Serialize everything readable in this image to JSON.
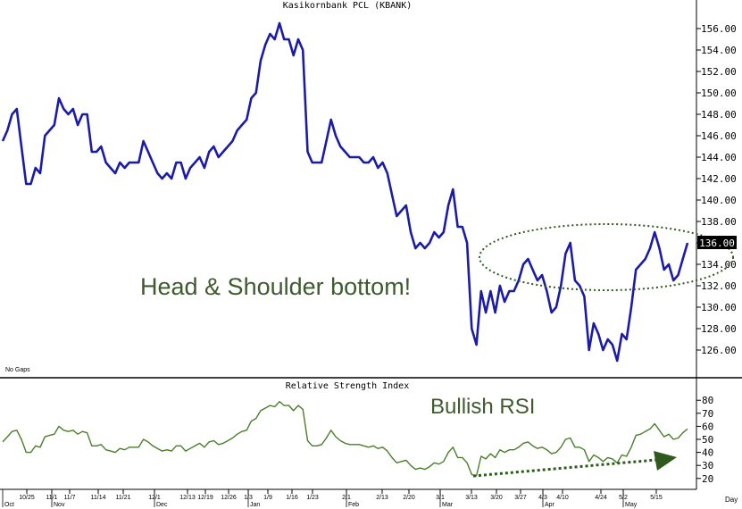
{
  "chart_data": [
    {
      "type": "line",
      "title": "Kasikornbank PCL (KBANK)",
      "ylim": [
        124,
        157
      ],
      "y_ticks": [
        126,
        128,
        130,
        132,
        134,
        136,
        138,
        140,
        142,
        144,
        146,
        148,
        150,
        152,
        154,
        156
      ],
      "tick_format": "fixed2",
      "last_value_label": "136.00",
      "grid": false,
      "corner_note": "No Gaps",
      "annotation": "Head & Shoulder bottom!",
      "line_color": "#1b1baa",
      "annotation_color": "#3e5a2e",
      "series": [
        {
          "values": [
            145.5,
            146.5,
            148.0,
            148.5,
            145.0,
            141.5,
            141.5,
            143.0,
            142.5,
            146.0,
            146.5,
            147.0,
            149.5,
            148.5,
            148.0,
            148.5,
            147.0,
            148.0,
            148.0,
            144.5,
            144.5,
            145.0,
            143.5,
            143.0,
            142.5,
            143.5,
            143.0,
            143.5,
            143.5,
            143.5,
            145.5,
            144.5,
            143.5,
            142.5,
            142.0,
            142.5,
            142.0,
            143.5,
            143.5,
            142.0,
            143.0,
            143.5,
            144.0,
            143.0,
            144.5,
            145.0,
            144.0,
            144.5,
            145.0,
            145.5,
            146.5,
            147.0,
            147.5,
            149.5,
            150.0,
            153.0,
            154.5,
            155.5,
            155.0,
            156.5,
            155.0,
            155.0,
            153.5,
            155.0,
            154.0,
            144.5,
            143.5,
            143.5,
            143.5,
            145.5,
            147.5,
            146.0,
            145.0,
            144.5,
            144.0,
            144.0,
            144.0,
            143.5,
            143.5,
            144.0,
            143.0,
            143.5,
            142.5,
            140.5,
            138.5,
            139.0,
            139.5,
            137.0,
            135.5,
            136.0,
            135.5,
            136.0,
            137.0,
            136.5,
            137.0,
            139.5,
            141.0,
            137.5,
            137.5,
            136.0,
            128.0,
            126.5,
            131.5,
            129.5,
            131.5,
            129.5,
            132.0,
            130.5,
            131.5,
            131.5,
            132.5,
            134.0,
            134.5,
            133.5,
            132.5,
            133.0,
            131.5,
            129.5,
            130.0,
            132.0,
            135.0,
            136.0,
            132.5,
            132.0,
            131.0,
            126.0,
            128.5,
            127.5,
            126.0,
            127.0,
            126.5,
            125.0,
            127.5,
            127.0,
            130.0,
            133.5,
            134.0,
            134.5,
            135.5,
            137.0,
            135.5,
            133.5,
            134.0,
            132.5,
            133.0,
            134.5,
            136.0
          ]
        }
      ]
    },
    {
      "type": "line",
      "title": "Relative Strength Index",
      "ylim": [
        13,
        87
      ],
      "y_ticks": [
        20,
        30,
        40,
        50,
        60,
        70,
        80
      ],
      "annotation": "Bullish RSI",
      "line_color": "#4a7e2a",
      "annotation_color": "#3e5a2e",
      "series": [
        {
          "values": [
            48,
            52,
            56,
            57,
            50,
            40,
            40,
            45,
            44,
            52,
            53,
            54,
            60,
            57,
            56,
            57,
            54,
            56,
            55,
            45,
            45,
            46,
            42,
            41,
            40,
            43,
            42,
            44,
            44,
            44,
            50,
            48,
            45,
            43,
            41,
            42,
            41,
            45,
            45,
            41,
            43,
            45,
            47,
            44,
            48,
            49,
            46,
            47,
            49,
            51,
            54,
            56,
            57,
            64,
            66,
            72,
            74,
            76,
            75,
            79,
            76,
            76,
            72,
            76,
            73,
            49,
            45,
            45,
            46,
            51,
            57,
            52,
            49,
            47,
            46,
            46,
            46,
            45,
            44,
            45,
            43,
            44,
            41,
            36,
            32,
            33,
            34,
            30,
            27,
            28,
            27,
            29,
            32,
            31,
            33,
            40,
            44,
            36,
            36,
            32,
            23,
            22,
            37,
            35,
            39,
            36,
            42,
            40,
            42,
            42,
            44,
            47,
            48,
            45,
            43,
            44,
            42,
            39,
            40,
            44,
            50,
            51,
            44,
            44,
            42,
            33,
            38,
            36,
            33,
            36,
            35,
            32,
            38,
            37,
            44,
            53,
            54,
            56,
            58,
            62,
            57,
            52,
            54,
            50,
            51,
            55,
            58
          ]
        }
      ]
    }
  ],
  "x_axis": {
    "tick_labels": [
      "10/25",
      "11/1",
      "11/7",
      "11/14",
      "11/21",
      "12/1",
      "12/13",
      "12/19",
      "12/26",
      "1/3",
      "1/9",
      "1/16",
      "1/23",
      "2/1",
      "2/13",
      "2/20",
      "3/1",
      "3/13",
      "3/20",
      "3/27",
      "4/3",
      "4/10",
      "4/24",
      "5/2",
      "5/15"
    ],
    "month_labels": [
      "Oct",
      "Nov",
      "Dec",
      "Jan",
      "Feb",
      "Mar",
      "Apr",
      "May"
    ],
    "period_label": "Day"
  }
}
